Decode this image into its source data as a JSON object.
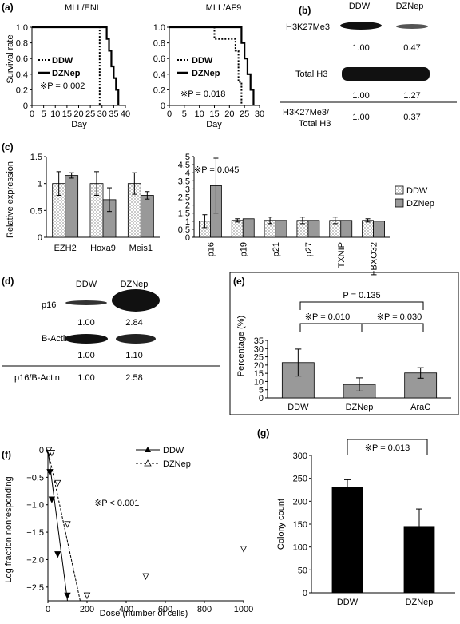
{
  "panels": {
    "a": {
      "label": "(a)",
      "left": {
        "title": "MLL/ENL",
        "ylabel": "Survival rate",
        "xlabel": "Day",
        "legend": [
          "DDW",
          "DZNep"
        ],
        "pvalue": "※P = 0.002",
        "xticks": [
          "0",
          "5",
          "10",
          "15",
          "20",
          "25",
          "30",
          "35",
          "40"
        ],
        "yticks": [
          "0",
          "0.2",
          "0.4",
          "0.6",
          "0.8",
          "1.0"
        ]
      },
      "right": {
        "title": "MLL/AF9",
        "xlabel": "Day",
        "legend": [
          "DDW",
          "DZNep"
        ],
        "pvalue": "※P = 0.018",
        "xticks": [
          "0",
          "5",
          "10",
          "15",
          "20",
          "25",
          "30"
        ],
        "yticks": [
          "0",
          "0.2",
          "0.4",
          "0.6",
          "0.8",
          "1.0"
        ]
      }
    },
    "b": {
      "label": "(b)",
      "col_ddw": "DDW",
      "col_dznep": "DZNep",
      "row1_label": "H3K27Me3",
      "row1_values": [
        "1.00",
        "0.47"
      ],
      "row2_label": "Total H3",
      "row2_values": [
        "1.00",
        "1.27"
      ],
      "ratio_label_1": "H3K27Me3/",
      "ratio_label_2": "Total H3",
      "ratio_values": [
        "1.00",
        "0.37"
      ]
    },
    "c": {
      "label": "(c)",
      "ylabel": "Relative expression",
      "pvalue": "※P = 0.045",
      "legend": [
        "DDW",
        "DZNep"
      ]
    },
    "d": {
      "label": "(d)",
      "col_ddw": "DDW",
      "col_dznep": "DZNep",
      "row1_label": "p16",
      "row1_values": [
        "1.00",
        "2.84"
      ],
      "row2_label": "B-Actin",
      "row2_values": [
        "1.00",
        "1.10"
      ],
      "ratio_label": "p16/B-Actin",
      "ratio_values": [
        "1.00",
        "2.58"
      ]
    },
    "e": {
      "label": "(e)",
      "ylabel": "Percentage (%)",
      "p_overall": "P = 0.135",
      "p_left": "※P = 0.010",
      "p_right": "※P = 0.030"
    },
    "f": {
      "label": "(f)",
      "ylabel": "Log fraction nonresponding",
      "xlabel": "Dose (number of cells)",
      "legend": [
        "DDW",
        "DZNep"
      ],
      "pvalue": "※P < 0.001"
    },
    "g": {
      "label": "(g)",
      "ylabel": "Colony count",
      "pvalue": "※P = 0.013"
    }
  },
  "chart_data": [
    {
      "panel": "a-left",
      "type": "line",
      "title": "MLL/ENL",
      "xlabel": "Day",
      "ylabel": "Survival rate",
      "xlim": [
        0,
        40
      ],
      "ylim": [
        0,
        1.0
      ],
      "series": [
        {
          "name": "DDW",
          "style": "dotted",
          "x": [
            0,
            29,
            29
          ],
          "y": [
            1.0,
            1.0,
            0
          ]
        },
        {
          "name": "DZNep",
          "style": "solid",
          "x": [
            0,
            32,
            32,
            33,
            33,
            34,
            34,
            35,
            35,
            36,
            36,
            37,
            37
          ],
          "y": [
            1.0,
            1.0,
            0.85,
            0.85,
            0.7,
            0.7,
            0.5,
            0.5,
            0.35,
            0.35,
            0.2,
            0.2,
            0
          ]
        }
      ]
    },
    {
      "panel": "a-right",
      "type": "line",
      "title": "MLL/AF9",
      "xlabel": "Day",
      "xlim": [
        0,
        30
      ],
      "ylim": [
        0,
        1.0
      ],
      "series": [
        {
          "name": "DDW",
          "style": "dotted",
          "x": [
            0,
            15,
            15,
            22,
            22,
            23,
            23,
            24,
            24
          ],
          "y": [
            1.0,
            1.0,
            0.85,
            0.85,
            0.7,
            0.7,
            0.3,
            0.3,
            0
          ]
        },
        {
          "name": "DZNep",
          "style": "solid",
          "x": [
            0,
            24,
            24,
            25,
            25,
            26,
            26,
            27,
            27,
            28,
            28
          ],
          "y": [
            1.0,
            1.0,
            0.8,
            0.8,
            0.6,
            0.6,
            0.4,
            0.4,
            0.2,
            0.2,
            0
          ]
        }
      ]
    },
    {
      "panel": "c-left",
      "type": "bar",
      "ylabel": "Relative expression",
      "categories": [
        "EZH2",
        "Hoxa9",
        "Meis1"
      ],
      "ylim": [
        0,
        1.5
      ],
      "yticks": [
        "0",
        "0.5",
        "1",
        "1.5"
      ],
      "series": [
        {
          "name": "DDW",
          "values": [
            1.0,
            1.0,
            1.0
          ],
          "errors": [
            0.22,
            0.22,
            0.2
          ]
        },
        {
          "name": "DZNep",
          "values": [
            1.15,
            0.7,
            0.78
          ],
          "errors": [
            0.05,
            0.22,
            0.07
          ]
        }
      ]
    },
    {
      "panel": "c-right",
      "type": "bar",
      "categories": [
        "p16",
        "p19",
        "p21",
        "p27",
        "TXNIP",
        "FBXO32"
      ],
      "ylim": [
        0,
        5
      ],
      "yticks": [
        "0",
        "0.5",
        "1",
        "1.5",
        "2",
        "2.5",
        "3",
        "3.5",
        "4",
        "4.5",
        "5"
      ],
      "series": [
        {
          "name": "DDW",
          "values": [
            1.0,
            1.05,
            1.05,
            1.05,
            1.05,
            1.05
          ],
          "errors": [
            0.4,
            0.1,
            0.2,
            0.2,
            0.2,
            0.1
          ]
        },
        {
          "name": "DZNep",
          "values": [
            3.2,
            1.15,
            1.05,
            1.05,
            1.05,
            1.0
          ],
          "errors": [
            1.7,
            0.0,
            0.0,
            0.0,
            0.0,
            0.0
          ]
        }
      ]
    },
    {
      "panel": "e",
      "type": "bar",
      "ylabel": "Percentage (%)",
      "categories": [
        "DDW",
        "DZNep",
        "AraC"
      ],
      "ylim": [
        0,
        35
      ],
      "yticks": [
        "0",
        "5",
        "10",
        "15",
        "20",
        "25",
        "30",
        "35"
      ],
      "values": [
        21.5,
        8.2,
        15.2
      ],
      "errors": [
        8.2,
        4.0,
        3.2
      ]
    },
    {
      "panel": "f",
      "type": "scatter",
      "xlabel": "Dose (number of cells)",
      "ylabel": "Log fraction nonresponding",
      "xlim": [
        0,
        1000
      ],
      "ylim": [
        -2.75,
        0
      ],
      "xticks": [
        "0",
        "200",
        "400",
        "600",
        "800",
        "1000"
      ],
      "yticks": [
        "0",
        "−0.5",
        "−1.0",
        "−1.5",
        "−2.0",
        "−2.5"
      ],
      "series": [
        {
          "name": "DDW",
          "marker": "filled-triangle",
          "x": [
            5,
            10,
            20,
            50,
            100,
            200
          ],
          "y": [
            -0.05,
            -0.4,
            -0.9,
            -1.9,
            -2.65,
            -2.65
          ],
          "fit_x": [
            0,
            100
          ],
          "fit_y": [
            0,
            -2.75
          ]
        },
        {
          "name": "DZNep",
          "marker": "open-triangle",
          "x": [
            5,
            10,
            20,
            50,
            100,
            200,
            500,
            1000
          ],
          "y": [
            0,
            -0.05,
            -0.05,
            -0.6,
            -1.35,
            -2.65,
            -2.3,
            -1.8
          ],
          "fit_x": [
            0,
            165
          ],
          "fit_y": [
            0,
            -2.75
          ]
        }
      ]
    },
    {
      "panel": "g",
      "type": "bar",
      "ylabel": "Colony count",
      "categories": [
        "DDW",
        "DZNep"
      ],
      "ylim": [
        0,
        300
      ],
      "yticks": [
        "0",
        "50",
        "100",
        "150",
        "200",
        "250",
        "300"
      ],
      "values": [
        230,
        145
      ],
      "errors": [
        17,
        38
      ]
    }
  ]
}
